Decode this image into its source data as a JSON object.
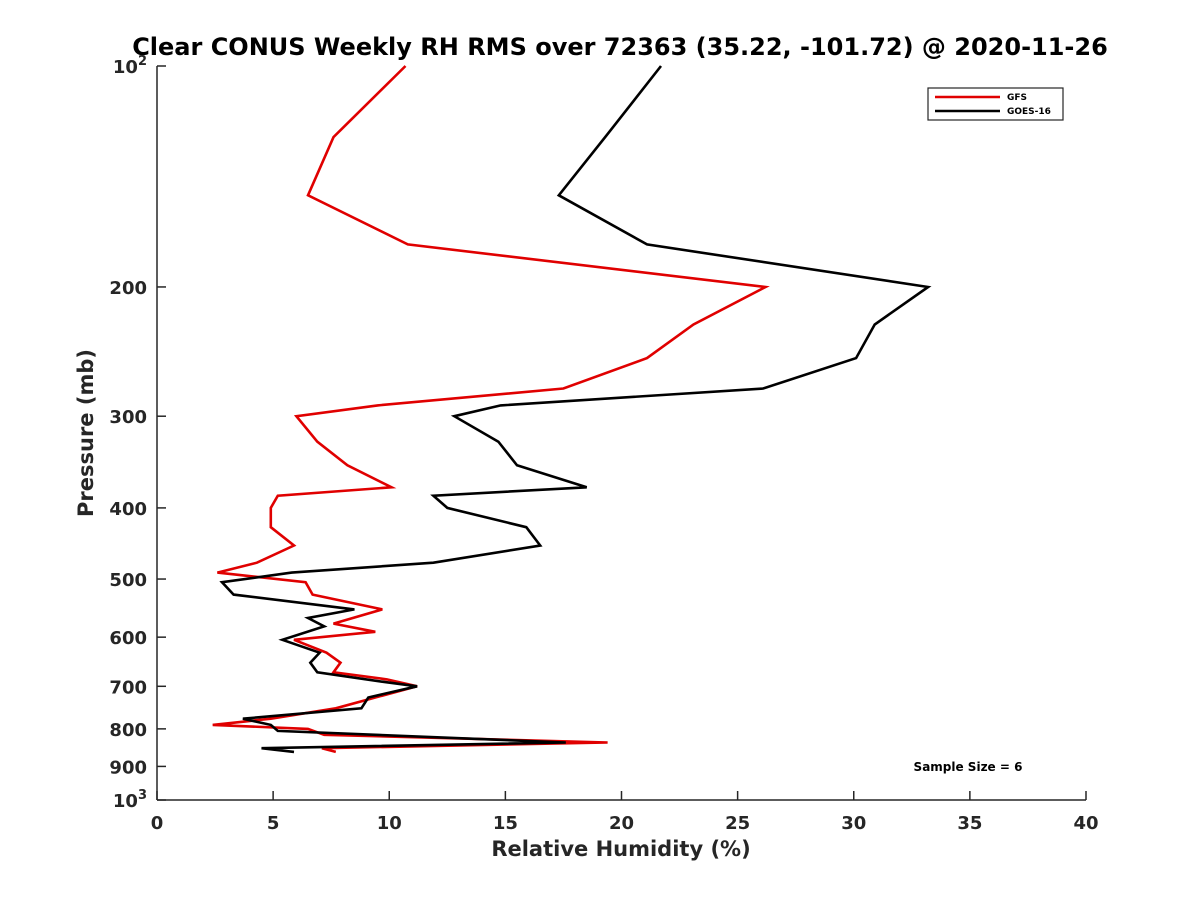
{
  "chart_data": {
    "type": "line",
    "title": "Clear CONUS Weekly RH RMS over 72363 (35.22, -101.72) @ 2020-11-26",
    "xlabel": "Relative Humidity (%)",
    "ylabel": "Pressure (mb)",
    "xlim": [
      0,
      40
    ],
    "ylim": [
      100,
      1000
    ],
    "yscale": "log",
    "y_reversed": true,
    "grid": false,
    "x_ticks": [
      0,
      5,
      10,
      15,
      20,
      25,
      30,
      35,
      40
    ],
    "x_tick_labels": [
      "0",
      "5",
      "10",
      "15",
      "20",
      "25",
      "30",
      "35",
      "40"
    ],
    "y_ticks": [
      100,
      200,
      300,
      400,
      500,
      600,
      700,
      800,
      900,
      1000
    ],
    "y_tick_labels": [
      {
        "base": "10",
        "exp": "2"
      },
      {
        "base": "200",
        "exp": ""
      },
      {
        "base": "300",
        "exp": ""
      },
      {
        "base": "400",
        "exp": ""
      },
      {
        "base": "500",
        "exp": ""
      },
      {
        "base": "600",
        "exp": ""
      },
      {
        "base": "700",
        "exp": ""
      },
      {
        "base": "800",
        "exp": ""
      },
      {
        "base": "900",
        "exp": ""
      },
      {
        "base": "10",
        "exp": "3"
      }
    ],
    "legend_position": "top-right",
    "annotation": "Sample Size = 6",
    "series": [
      {
        "name": "GFS",
        "color": "#e00000",
        "points": [
          [
            10.7,
            100
          ],
          [
            7.6,
            125
          ],
          [
            6.5,
            150
          ],
          [
            10.8,
            175
          ],
          [
            26.2,
            200
          ],
          [
            23.1,
            225
          ],
          [
            21.1,
            250
          ],
          [
            17.5,
            275
          ],
          [
            9.5,
            290
          ],
          [
            6.0,
            300
          ],
          [
            6.9,
            325
          ],
          [
            8.2,
            350
          ],
          [
            10.1,
            375
          ],
          [
            5.2,
            385
          ],
          [
            4.9,
            400
          ],
          [
            4.9,
            425
          ],
          [
            5.9,
            450
          ],
          [
            4.3,
            475
          ],
          [
            2.6,
            490
          ],
          [
            6.4,
            505
          ],
          [
            6.7,
            525
          ],
          [
            9.7,
            550
          ],
          [
            7.6,
            575
          ],
          [
            9.4,
            590
          ],
          [
            5.9,
            605
          ],
          [
            7.3,
            630
          ],
          [
            7.9,
            650
          ],
          [
            7.6,
            670
          ],
          [
            9.9,
            685
          ],
          [
            11.2,
            700
          ],
          [
            9.4,
            725
          ],
          [
            7.7,
            750
          ],
          [
            4.9,
            775
          ],
          [
            2.4,
            790
          ],
          [
            6.5,
            800
          ],
          [
            7.2,
            815
          ],
          [
            19.4,
            835
          ],
          [
            7.1,
            850
          ],
          [
            7.7,
            860
          ]
        ]
      },
      {
        "name": "GOES-16",
        "color": "#000000",
        "points": [
          [
            21.7,
            100
          ],
          [
            19.3,
            125
          ],
          [
            17.3,
            150
          ],
          [
            21.1,
            175
          ],
          [
            33.2,
            200
          ],
          [
            30.9,
            225
          ],
          [
            30.1,
            250
          ],
          [
            26.1,
            275
          ],
          [
            14.8,
            290
          ],
          [
            12.8,
            300
          ],
          [
            14.7,
            325
          ],
          [
            15.5,
            350
          ],
          [
            18.5,
            375
          ],
          [
            11.9,
            385
          ],
          [
            12.5,
            400
          ],
          [
            15.9,
            425
          ],
          [
            16.5,
            450
          ],
          [
            11.9,
            475
          ],
          [
            5.8,
            490
          ],
          [
            2.8,
            505
          ],
          [
            3.3,
            525
          ],
          [
            8.5,
            550
          ],
          [
            6.5,
            565
          ],
          [
            7.2,
            580
          ],
          [
            5.4,
            605
          ],
          [
            7.0,
            630
          ],
          [
            6.6,
            650
          ],
          [
            6.9,
            670
          ],
          [
            9.7,
            690
          ],
          [
            11.2,
            700
          ],
          [
            9.1,
            725
          ],
          [
            8.8,
            750
          ],
          [
            3.7,
            775
          ],
          [
            4.9,
            790
          ],
          [
            5.2,
            805
          ],
          [
            17.6,
            835
          ],
          [
            4.5,
            850
          ],
          [
            5.9,
            860
          ]
        ]
      }
    ]
  }
}
